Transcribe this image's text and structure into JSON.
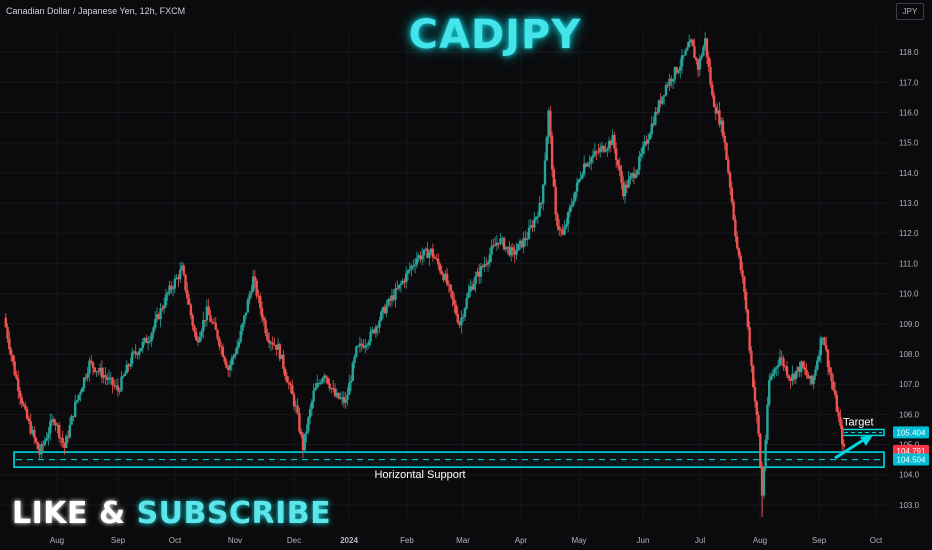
{
  "header": {
    "symbol_desc": "Canadian Dollar / Japanese Yen, 12h, FXCM",
    "currency_badge": "JPY"
  },
  "overlay": {
    "title": "CADJPY",
    "like": "LIKE & ",
    "subscribe": "SUBSCRIBE",
    "support_label": "Horizontal Support",
    "target_label": "Target"
  },
  "colors": {
    "background": "#0b0b0d",
    "up": "#26a69a",
    "down": "#ef5350",
    "accent": "#00d8e0",
    "current_price_bg": "#f23645",
    "target_price_bg": "#00bcd4"
  },
  "chart_data": {
    "type": "candlestick",
    "symbol": "CADJPY",
    "timeframe": "12h",
    "ylim": [
      102.4,
      118.8
    ],
    "y_ticks": [
      103.0,
      104.0,
      105.0,
      106.0,
      107.0,
      108.0,
      109.0,
      110.0,
      111.0,
      112.0,
      113.0,
      114.0,
      115.0,
      116.0,
      117.0,
      118.0
    ],
    "x_ticks": [
      "Aug",
      "Sep",
      "Oct",
      "Nov",
      "Dec",
      "2024",
      "Feb",
      "Mar",
      "Apr",
      "May",
      "Jun",
      "Jul",
      "Aug",
      "Sep",
      "Oct"
    ],
    "price_path": [
      {
        "t": 0,
        "p": 109.2
      },
      {
        "t": 3,
        "p": 107.4
      },
      {
        "t": 6,
        "p": 106.0
      },
      {
        "t": 10,
        "p": 104.7
      },
      {
        "t": 14,
        "p": 105.9
      },
      {
        "t": 17,
        "p": 104.9
      },
      {
        "t": 20,
        "p": 106.3
      },
      {
        "t": 24,
        "p": 107.7
      },
      {
        "t": 28,
        "p": 107.3
      },
      {
        "t": 32,
        "p": 106.8
      },
      {
        "t": 36,
        "p": 107.9
      },
      {
        "t": 41,
        "p": 108.6
      },
      {
        "t": 46,
        "p": 110.0
      },
      {
        "t": 50,
        "p": 110.8
      },
      {
        "t": 54,
        "p": 108.4
      },
      {
        "t": 57,
        "p": 109.4
      },
      {
        "t": 60,
        "p": 108.6
      },
      {
        "t": 63,
        "p": 107.5
      },
      {
        "t": 66,
        "p": 108.4
      },
      {
        "t": 70,
        "p": 110.5
      },
      {
        "t": 74,
        "p": 108.6
      },
      {
        "t": 77,
        "p": 108.2
      },
      {
        "t": 82,
        "p": 106.2
      },
      {
        "t": 84,
        "p": 104.9
      },
      {
        "t": 87,
        "p": 106.7
      },
      {
        "t": 90,
        "p": 107.4
      },
      {
        "t": 93,
        "p": 106.6
      },
      {
        "t": 96,
        "p": 106.4
      },
      {
        "t": 99,
        "p": 108.1
      },
      {
        "t": 103,
        "p": 108.6
      },
      {
        "t": 107,
        "p": 109.5
      },
      {
        "t": 111,
        "p": 110.2
      },
      {
        "t": 116,
        "p": 111.2
      },
      {
        "t": 120,
        "p": 111.4
      },
      {
        "t": 124,
        "p": 110.5
      },
      {
        "t": 128,
        "p": 109.0
      },
      {
        "t": 131,
        "p": 110.2
      },
      {
        "t": 135,
        "p": 111.0
      },
      {
        "t": 139,
        "p": 111.8
      },
      {
        "t": 143,
        "p": 111.3
      },
      {
        "t": 147,
        "p": 111.9
      },
      {
        "t": 151,
        "p": 113.0
      },
      {
        "t": 153,
        "p": 116.0
      },
      {
        "t": 155,
        "p": 112.5
      },
      {
        "t": 157,
        "p": 111.9
      },
      {
        "t": 160,
        "p": 113.2
      },
      {
        "t": 163,
        "p": 114.3
      },
      {
        "t": 167,
        "p": 114.7
      },
      {
        "t": 171,
        "p": 115.1
      },
      {
        "t": 174,
        "p": 113.4
      },
      {
        "t": 178,
        "p": 114.2
      },
      {
        "t": 182,
        "p": 115.6
      },
      {
        "t": 186,
        "p": 116.9
      },
      {
        "t": 190,
        "p": 117.6
      },
      {
        "t": 193,
        "p": 118.3
      },
      {
        "t": 195,
        "p": 117.5
      },
      {
        "t": 197,
        "p": 118.4
      },
      {
        "t": 199,
        "p": 116.5
      },
      {
        "t": 202,
        "p": 115.4
      },
      {
        "t": 204,
        "p": 113.6
      },
      {
        "t": 206,
        "p": 111.5
      },
      {
        "t": 208,
        "p": 110.1
      },
      {
        "t": 210,
        "p": 107.6
      },
      {
        "t": 212,
        "p": 105.3
      },
      {
        "t": 213,
        "p": 103.3
      },
      {
        "t": 215,
        "p": 107.1
      },
      {
        "t": 218,
        "p": 107.9
      },
      {
        "t": 221,
        "p": 107.2
      },
      {
        "t": 224,
        "p": 107.6
      },
      {
        "t": 227,
        "p": 107.0
      },
      {
        "t": 230,
        "p": 108.7
      },
      {
        "t": 232,
        "p": 107.4
      },
      {
        "t": 234,
        "p": 106.2
      },
      {
        "t": 236,
        "p": 104.8
      }
    ],
    "horizontal_support": {
      "label": "Horizontal Support",
      "low": 104.25,
      "high": 104.75,
      "mid": 104.5
    },
    "target_zone": {
      "label": "Target",
      "low": 105.3,
      "high": 105.5
    },
    "price_labels": [
      {
        "value": "105.404",
        "kind": "target"
      },
      {
        "value": "104.791",
        "kind": "current"
      },
      {
        "value": "104.504",
        "kind": "support"
      }
    ]
  }
}
